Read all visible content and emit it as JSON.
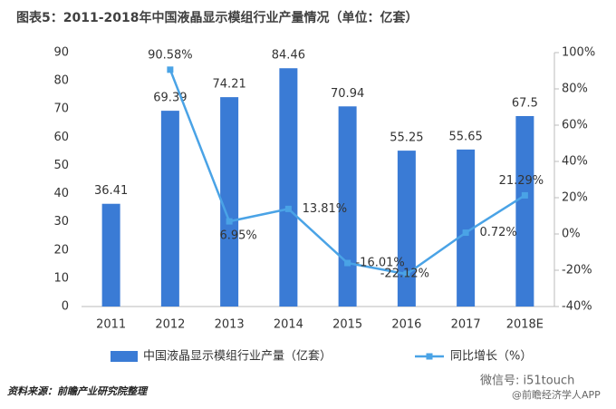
{
  "chart_data": {
    "type": "bar_line",
    "title": "图表5：2011-2018年中国液晶显示模组行业产量情况（单位：亿套）",
    "categories": [
      "2011",
      "2012",
      "2013",
      "2014",
      "2015",
      "2016",
      "2017",
      "2018E"
    ],
    "series": [
      {
        "name": "中国液晶显示模组行业产量（亿套）",
        "type": "bar",
        "color": "#3a7bd5",
        "values": [
          36.41,
          69.39,
          74.21,
          84.46,
          70.94,
          55.25,
          55.65,
          67.5
        ]
      },
      {
        "name": "同比增长（%）",
        "type": "line",
        "axis": "y2",
        "color": "#4aa3e6",
        "values": [
          null,
          90.58,
          6.95,
          13.81,
          -16.01,
          -22.12,
          0.72,
          21.29
        ],
        "value_labels": [
          null,
          "90.58%",
          "6.95%",
          "13.81%",
          "-16.01%",
          "-22.12%",
          "0.72%",
          "21.29%"
        ]
      }
    ],
    "ylim": [
      0,
      90
    ],
    "yticks": [
      0,
      10,
      20,
      30,
      40,
      50,
      60,
      70,
      80,
      90
    ],
    "y2lim": [
      -40,
      100
    ],
    "y2ticks": [
      {
        "value": -40,
        "label": "-40%"
      },
      {
        "value": -20,
        "label": "-20%"
      },
      {
        "value": 0,
        "label": "0%"
      },
      {
        "value": 20,
        "label": "20%"
      },
      {
        "value": 40,
        "label": "40%"
      },
      {
        "value": 60,
        "label": "60%"
      },
      {
        "value": 80,
        "label": "80%"
      },
      {
        "value": 100,
        "label": "100%"
      }
    ],
    "legend": "bottom"
  },
  "footer": {
    "source": "资料来源：前瞻产业研究院整理",
    "wechat": "微信号: i51touch",
    "app": "@前瞻经济学人APP"
  }
}
